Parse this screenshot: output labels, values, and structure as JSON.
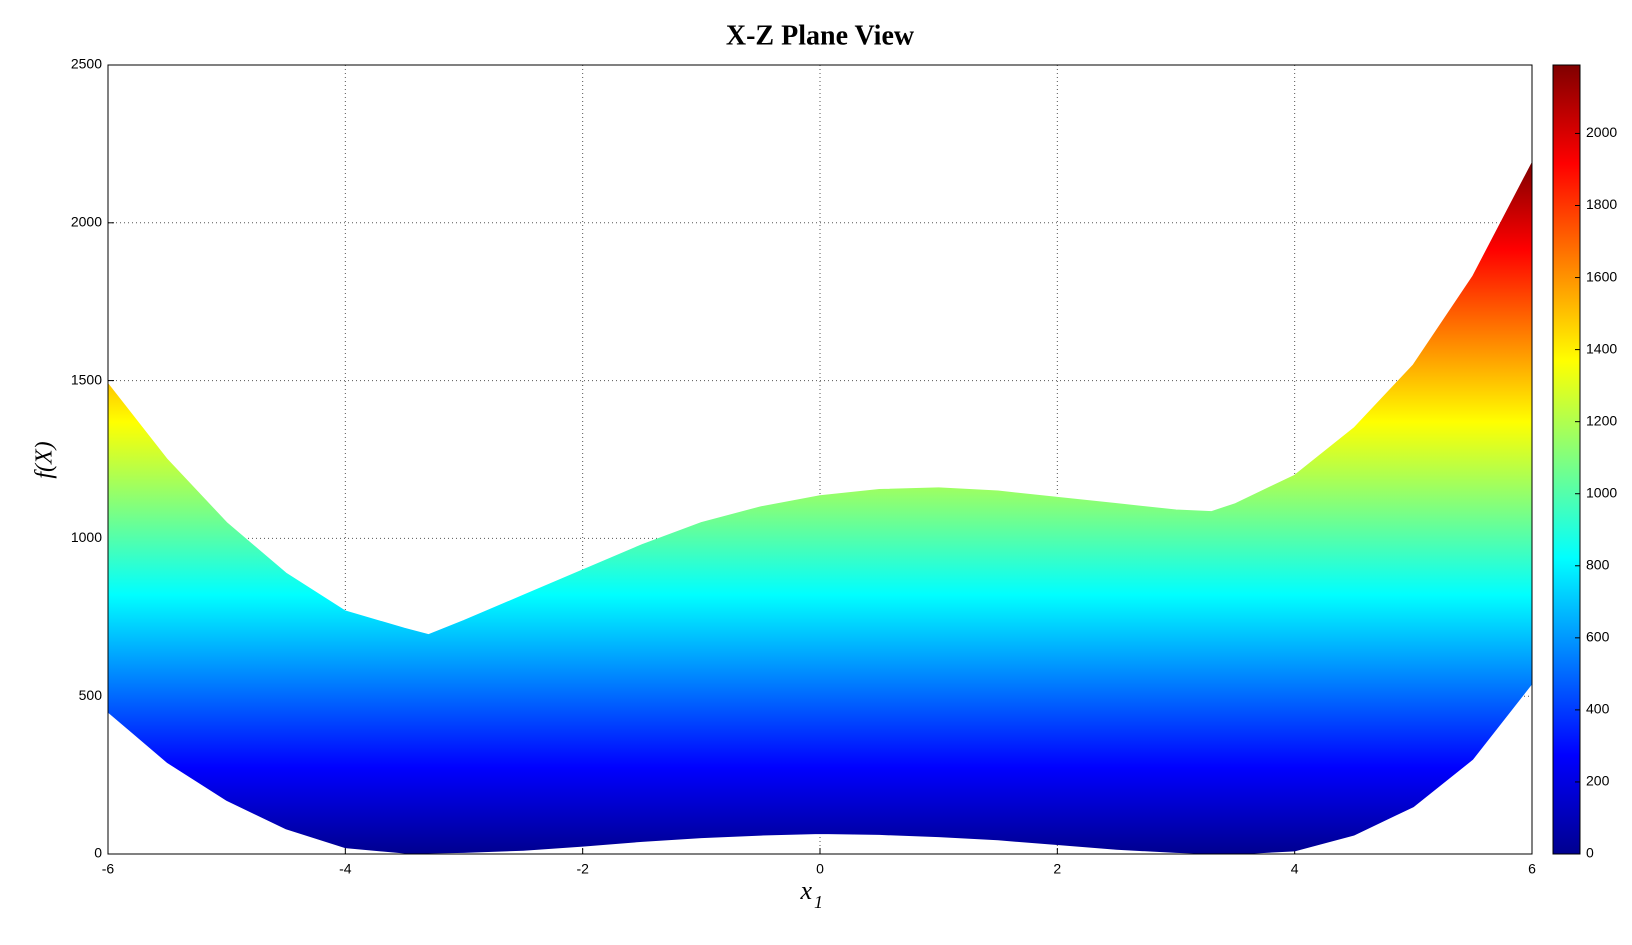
{
  "chart_data": {
    "type": "area",
    "title": "X-Z Plane View",
    "xlabel": "x",
    "xlabel_subscript": "1",
    "ylabel": "f(X)",
    "x": [
      -6,
      -5.5,
      -5,
      -4.5,
      -4,
      -3.5,
      -3.3,
      -3,
      -2.5,
      -2,
      -1.5,
      -1,
      -0.5,
      0,
      0.5,
      1,
      1.5,
      2,
      2.5,
      3,
      3.3,
      3.5,
      4,
      4.5,
      5,
      5.5,
      6
    ],
    "series": [
      {
        "values": [
          1490,
          1250,
          1050,
          890,
          770,
          715,
          695,
          740,
          820,
          900,
          980,
          1050,
          1100,
          1135,
          1155,
          1160,
          1150,
          1130,
          1110,
          1090,
          1085,
          1110,
          1200,
          1350,
          1550,
          1830,
          2190
        ]
      },
      {
        "values": [
          450,
          290,
          170,
          80,
          20,
          3,
          3,
          5,
          12,
          25,
          40,
          52,
          60,
          65,
          62,
          55,
          45,
          30,
          15,
          5,
          1,
          0,
          10,
          60,
          150,
          300,
          540
        ]
      }
    ],
    "xlim": [
      -6,
      6
    ],
    "xticks": [
      -6,
      -4,
      -2,
      0,
      2,
      4,
      6
    ],
    "ylim": [
      0,
      2500
    ],
    "yticks": [
      0,
      500,
      1000,
      1500,
      2000,
      2500
    ],
    "grid": true,
    "colormap": "jet",
    "clim": [
      0,
      2190
    ],
    "cticks": [
      0,
      200,
      400,
      600,
      800,
      1000,
      1200,
      1400,
      1600,
      1800,
      2000
    ]
  }
}
